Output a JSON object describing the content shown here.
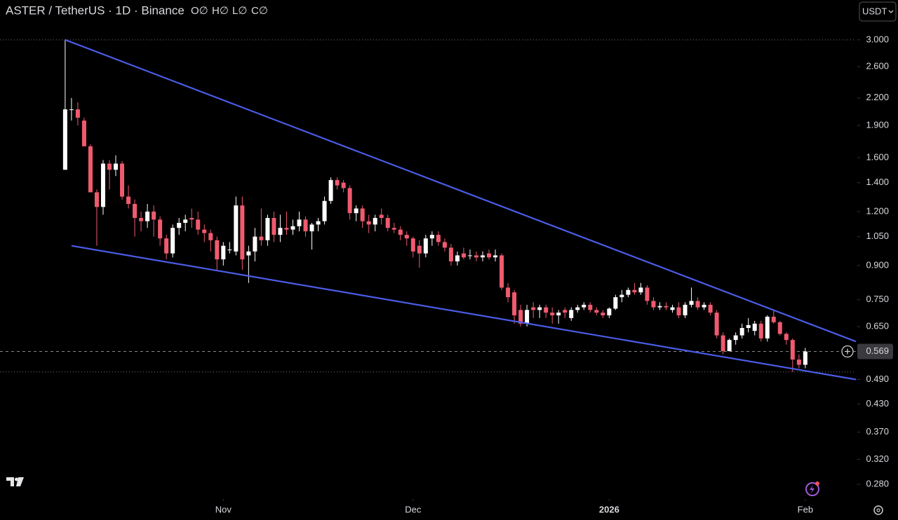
{
  "chart_data": {
    "type": "candlestick",
    "title": "ASTER / TetherUS · 1D · Binance",
    "ohlc_legend": [
      "O∅",
      "H∅",
      "L∅",
      "C∅"
    ],
    "currency_button": "USDT",
    "log_scale": true,
    "up_color": "#ffffff",
    "down_color": "#ef5a6f",
    "open": [
      1.5,
      2.07,
      2.07,
      1.95,
      1.7,
      1.33,
      1.23,
      1.55,
      1.5,
      1.55,
      1.3,
      1.25,
      1.16,
      1.14,
      1.2,
      1.15,
      1.04,
      0.96,
      1.1,
      1.13,
      1.16,
      1.15,
      1.09,
      1.07,
      1.03,
      0.93,
      0.98,
      0.97,
      1.24,
      0.95,
      0.97,
      1.05,
      1.03,
      1.16,
      1.06,
      1.1,
      1.09,
      1.11,
      1.15,
      1.08,
      1.12,
      1.14,
      1.27,
      1.42,
      1.4,
      1.36,
      1.19,
      1.22,
      1.14,
      1.12,
      1.18,
      1.16,
      1.1,
      1.09,
      1.06,
      1.04,
      1.0,
      0.96,
      1.04,
      1.06,
      1.02,
      0.99,
      0.92,
      0.96,
      0.95,
      0.95,
      0.94,
      0.96,
      0.94,
      0.95,
      0.8,
      0.78,
      0.71,
      0.66,
      0.72,
      0.71,
      0.72,
      0.7,
      0.69,
      0.71,
      0.68,
      0.71,
      0.72,
      0.73,
      0.71,
      0.7,
      0.69,
      0.715,
      0.76,
      0.77,
      0.79,
      0.78,
      0.8,
      0.745,
      0.72,
      0.725,
      0.71,
      0.72,
      0.69,
      0.73,
      0.745,
      0.72,
      0.73,
      0.7,
      0.62,
      0.57,
      0.605,
      0.62,
      0.645,
      0.635,
      0.66,
      0.61,
      0.685,
      0.665,
      0.625,
      0.605,
      0.545,
      0.53
    ],
    "high": [
      3.0,
      2.2,
      2.15,
      1.98,
      1.72,
      1.35,
      1.58,
      1.58,
      1.62,
      1.57,
      1.38,
      1.28,
      1.2,
      1.25,
      1.24,
      1.17,
      1.06,
      1.12,
      1.16,
      1.18,
      1.22,
      1.2,
      1.12,
      1.09,
      1.05,
      1.02,
      1.02,
      1.3,
      1.3,
      1.0,
      1.1,
      1.22,
      1.18,
      1.2,
      1.18,
      1.2,
      1.15,
      1.2,
      1.17,
      1.13,
      1.16,
      1.3,
      1.44,
      1.44,
      1.42,
      1.38,
      1.24,
      1.24,
      1.18,
      1.18,
      1.22,
      1.18,
      1.13,
      1.11,
      1.08,
      1.05,
      1.03,
      1.06,
      1.08,
      1.08,
      1.04,
      1.01,
      0.97,
      0.99,
      0.98,
      0.97,
      0.97,
      0.98,
      0.98,
      0.96,
      0.82,
      0.79,
      0.73,
      0.73,
      0.74,
      0.73,
      0.73,
      0.72,
      0.71,
      0.72,
      0.72,
      0.73,
      0.74,
      0.74,
      0.72,
      0.71,
      0.72,
      0.77,
      0.79,
      0.8,
      0.82,
      0.82,
      0.81,
      0.76,
      0.74,
      0.74,
      0.73,
      0.74,
      0.74,
      0.8,
      0.76,
      0.74,
      0.74,
      0.71,
      0.63,
      0.61,
      0.63,
      0.66,
      0.68,
      0.67,
      0.67,
      0.69,
      0.71,
      0.67,
      0.63,
      0.61,
      0.56,
      0.58
    ],
    "low": [
      1.5,
      1.95,
      1.9,
      1.7,
      1.33,
      1.0,
      1.18,
      1.35,
      1.45,
      1.28,
      1.22,
      1.05,
      1.08,
      1.1,
      1.05,
      1.0,
      0.93,
      0.94,
      1.06,
      1.08,
      1.1,
      1.06,
      1.02,
      0.97,
      0.88,
      0.9,
      0.96,
      0.95,
      0.88,
      0.82,
      0.92,
      1.0,
      1.0,
      1.02,
      1.02,
      1.06,
      1.06,
      1.08,
      1.05,
      0.98,
      1.08,
      1.12,
      1.25,
      1.35,
      1.33,
      1.15,
      1.14,
      1.1,
      1.07,
      1.08,
      1.12,
      1.08,
      1.07,
      1.03,
      1.0,
      0.94,
      0.89,
      0.94,
      1.0,
      1.0,
      0.97,
      0.9,
      0.9,
      0.93,
      0.93,
      0.92,
      0.92,
      0.93,
      0.92,
      0.79,
      0.74,
      0.66,
      0.65,
      0.65,
      0.68,
      0.68,
      0.68,
      0.66,
      0.66,
      0.68,
      0.67,
      0.7,
      0.71,
      0.7,
      0.69,
      0.68,
      0.68,
      0.71,
      0.74,
      0.76,
      0.77,
      0.77,
      0.73,
      0.71,
      0.71,
      0.71,
      0.7,
      0.68,
      0.68,
      0.72,
      0.71,
      0.71,
      0.69,
      0.61,
      0.56,
      0.57,
      0.59,
      0.61,
      0.63,
      0.62,
      0.6,
      0.6,
      0.66,
      0.62,
      0.59,
      0.51,
      0.52,
      0.52
    ],
    "close": [
      2.07,
      2.07,
      1.98,
      1.7,
      1.33,
      1.23,
      1.55,
      1.5,
      1.55,
      1.3,
      1.25,
      1.16,
      1.14,
      1.2,
      1.15,
      1.04,
      0.96,
      1.1,
      1.13,
      1.15,
      1.15,
      1.09,
      1.07,
      1.03,
      0.93,
      1.0,
      0.98,
      1.24,
      0.93,
      0.97,
      1.05,
      1.03,
      1.16,
      1.06,
      1.1,
      1.09,
      1.11,
      1.15,
      1.08,
      1.12,
      1.14,
      1.27,
      1.42,
      1.38,
      1.36,
      1.19,
      1.22,
      1.14,
      1.12,
      1.16,
      1.16,
      1.1,
      1.09,
      1.06,
      1.04,
      0.97,
      0.96,
      1.04,
      1.06,
      1.02,
      0.99,
      0.92,
      0.95,
      0.94,
      0.95,
      0.94,
      0.95,
      0.94,
      0.95,
      0.8,
      0.76,
      0.69,
      0.66,
      0.71,
      0.71,
      0.72,
      0.7,
      0.69,
      0.7,
      0.7,
      0.71,
      0.72,
      0.73,
      0.71,
      0.7,
      0.69,
      0.715,
      0.76,
      0.77,
      0.79,
      0.78,
      0.8,
      0.745,
      0.72,
      0.725,
      0.72,
      0.72,
      0.69,
      0.73,
      0.745,
      0.72,
      0.73,
      0.7,
      0.62,
      0.57,
      0.605,
      0.62,
      0.645,
      0.655,
      0.66,
      0.61,
      0.685,
      0.665,
      0.625,
      0.605,
      0.545,
      0.53,
      0.569
    ],
    "xlim": [
      -10.3,
      125
    ],
    "xticks": [
      {
        "value": 25,
        "label": "Nov"
      },
      {
        "value": 55,
        "label": "Dec"
      },
      {
        "value": 86,
        "label": "2026"
      },
      {
        "value": 117,
        "label": "Feb"
      }
    ],
    "ylim": [
      0.261,
      3.71
    ],
    "yticks": [
      {
        "value": 3.0,
        "label": "3.000"
      },
      {
        "value": 2.6,
        "label": "2.600"
      },
      {
        "value": 2.2,
        "label": "2.200"
      },
      {
        "value": 1.9,
        "label": "1.900"
      },
      {
        "value": 1.6,
        "label": "1.600"
      },
      {
        "value": 1.4,
        "label": "1.400"
      },
      {
        "value": 1.2,
        "label": "1.200"
      },
      {
        "value": 1.05,
        "label": "1.050"
      },
      {
        "value": 0.9,
        "label": "0.900"
      },
      {
        "value": 0.75,
        "label": "0.750"
      },
      {
        "value": 0.65,
        "label": "0.650"
      },
      {
        "value": 0.49,
        "label": "0.490"
      },
      {
        "value": 0.43,
        "label": "0.430"
      },
      {
        "value": 0.37,
        "label": "0.370"
      },
      {
        "value": 0.32,
        "label": "0.320"
      },
      {
        "value": 0.28,
        "label": "0.280"
      }
    ],
    "trendlines": [
      {
        "color": "#4b5ce6",
        "points": [
          [
            0,
            3.0
          ],
          [
            125,
            0.6
          ]
        ]
      },
      {
        "color": "#4b5ce6",
        "points": [
          [
            1,
            1.0
          ],
          [
            125,
            0.49
          ]
        ]
      }
    ]
  }
}
